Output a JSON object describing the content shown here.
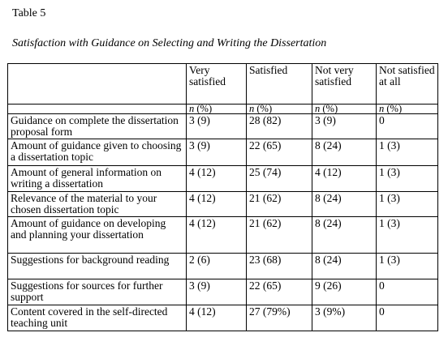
{
  "header": {
    "title": "Table 5",
    "caption": "Satisfaction with Guidance on Selecting and Writing the Dissertation"
  },
  "table": {
    "columns": [
      "",
      "Very satisfied",
      "Satisfied",
      "Not very satisfied",
      "Not satisfied at all"
    ],
    "units": [
      "",
      "n (%)",
      "n (%)",
      "n (%)",
      "n (%)"
    ],
    "rows": [
      [
        "Guidance on complete the dissertation proposal form",
        "3 (9)",
        "28 (82)",
        "3 (9)",
        "0"
      ],
      [
        "Amount of guidance given to choosing a dissertation topic",
        "3 (9)",
        "22 (65)",
        "8 (24)",
        "1 (3)"
      ],
      [
        "Amount of general information on writing a dissertation",
        "4 (12)",
        "25 (74)",
        "4 (12)",
        "1 (3)"
      ],
      [
        "Relevance of the material to your chosen dissertation topic",
        "4 (12)",
        "21 (62)",
        "8 (24)",
        "1 (3)"
      ],
      [
        "Amount of guidance on developing and planning your dissertation",
        "4 (12)",
        "21 (62)",
        "8 (24)",
        "1 (3)"
      ],
      [
        "Suggestions for background reading",
        "2 (6)",
        "23 (68)",
        "8 (24)",
        "1 (3)"
      ],
      [
        "Suggestions for sources for further support",
        "3 (9)",
        "22 (65)",
        "9 (26)",
        "0"
      ],
      [
        "Content covered in the self-directed teaching unit",
        "4 (12)",
        "27 (79%)",
        "3 (9%)",
        "0"
      ]
    ]
  }
}
